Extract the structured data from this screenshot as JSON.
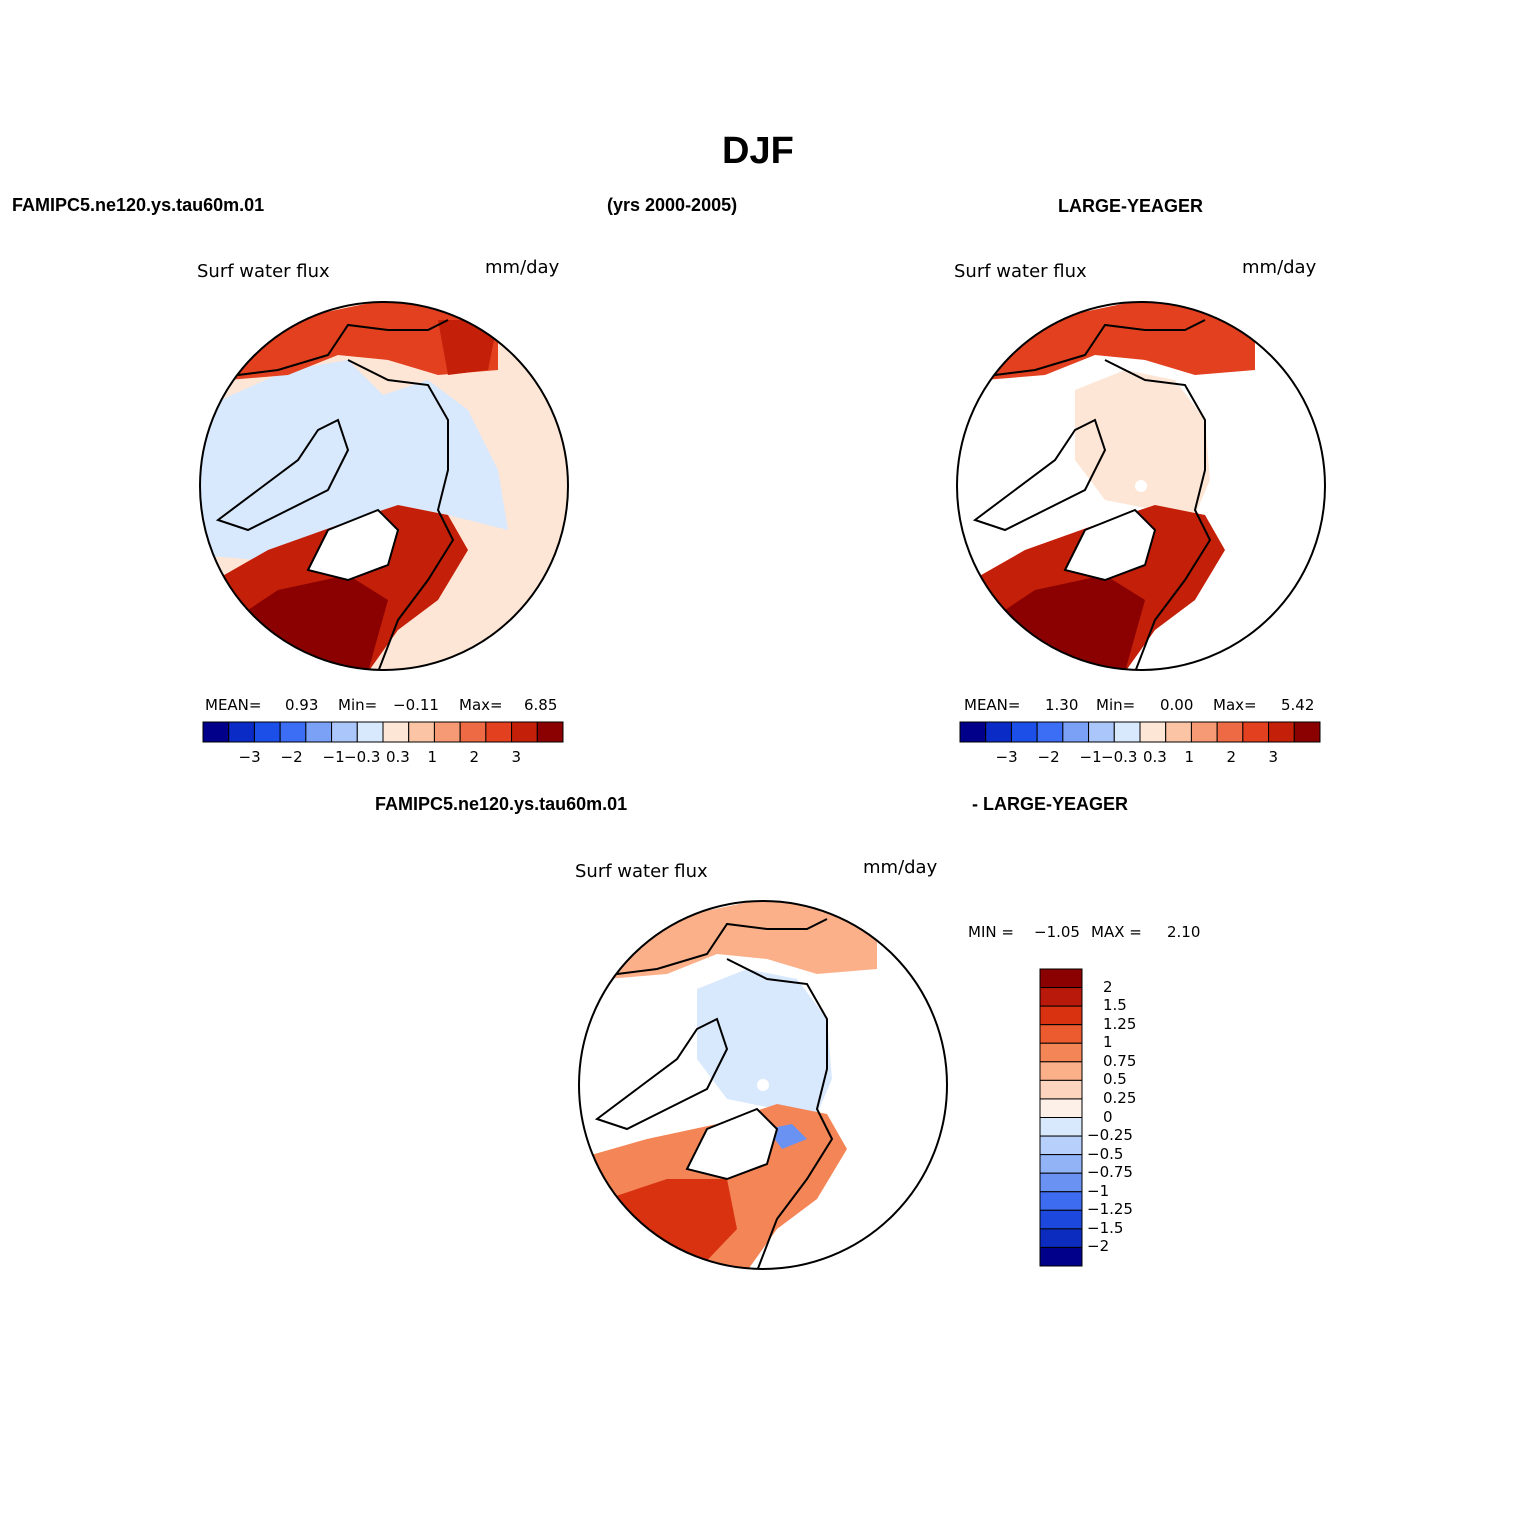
{
  "figure": {
    "title": "DJF",
    "period": "(yrs 2000-2005)",
    "model_case": "FAMIPC5.ne120.ys.tau60m.01",
    "obs_case": "LARGE-YEAGER",
    "diff_left": "FAMIPC5.ne120.ys.tau60m.01",
    "diff_right": "- LARGE-YEAGER"
  },
  "panels": {
    "model": {
      "variable": "Surf water flux",
      "units": "mm/day",
      "mean_label": "MEAN=",
      "mean": "0.93",
      "min_label": "Min=",
      "min": "−0.11",
      "max_label": "Max=",
      "max": "6.85"
    },
    "obs": {
      "variable": "Surf water flux",
      "units": "mm/day",
      "mean_label": "MEAN=",
      "mean": "1.30",
      "min_label": "Min=",
      "min": "0.00",
      "max_label": "Max=",
      "max": "5.42"
    },
    "diff": {
      "variable": "Surf water flux",
      "units": "mm/day",
      "min_label": "MIN =",
      "min": "−1.05",
      "max_label": "MAX =",
      "max": "2.10"
    }
  },
  "colorbar_main": {
    "colors": [
      "#00008b",
      "#0a2bc6",
      "#1b4fe8",
      "#3b6ef5",
      "#7ba1f7",
      "#aac6fa",
      "#d8e8fd",
      "#fde6d6",
      "#fbc4a5",
      "#f59a74",
      "#ee6a44",
      "#e2401f",
      "#c42009",
      "#8b0000"
    ],
    "ticks": [
      "−3",
      "−2",
      "−1",
      "−0.3",
      "0.3",
      "1",
      "2",
      "3"
    ]
  },
  "colorbar_diff": {
    "colors_top_to_bottom": [
      "#8b0000",
      "#b8190a",
      "#d83211",
      "#ec5a2f",
      "#f48556",
      "#fbb08a",
      "#fdd5bf",
      "#fdf0e8",
      "#d8e8fd",
      "#b7d0fb",
      "#92b4f7",
      "#6a92f3",
      "#3d6cf0",
      "#1c48de",
      "#0b2cbf",
      "#00008b"
    ],
    "ticks": [
      "2",
      "1.5",
      "1.25",
      "1",
      "0.75",
      "0.5",
      "0.25",
      "0",
      "−0.25",
      "−0.5",
      "−0.75",
      "−1",
      "−1.25",
      "−1.5",
      "−2"
    ]
  }
}
